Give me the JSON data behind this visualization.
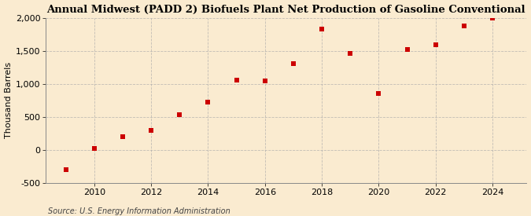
{
  "title": "Annual Midwest (PADD 2) Biofuels Plant Net Production of Gasoline Conventional",
  "ylabel": "Thousand Barrels",
  "source": "Source: U.S. Energy Information Administration",
  "background_color": "#faebd0",
  "marker_color": "#cc0000",
  "years": [
    2009,
    2010,
    2011,
    2012,
    2013,
    2014,
    2015,
    2016,
    2017,
    2018,
    2019,
    2020,
    2021,
    2022,
    2023,
    2024
  ],
  "values": [
    -300,
    30,
    200,
    300,
    530,
    730,
    1060,
    1040,
    1310,
    1830,
    1460,
    860,
    1520,
    1590,
    1880,
    1990
  ],
  "ylim": [
    -500,
    2000
  ],
  "yticks": [
    -500,
    0,
    500,
    1000,
    1500,
    2000
  ],
  "xticks": [
    2010,
    2012,
    2014,
    2016,
    2018,
    2020,
    2022,
    2024
  ],
  "xlim": [
    2008.3,
    2025.2
  ],
  "grid_color": "#aaaaaa",
  "title_fontsize": 9.5,
  "label_fontsize": 8,
  "tick_fontsize": 8,
  "source_fontsize": 7
}
